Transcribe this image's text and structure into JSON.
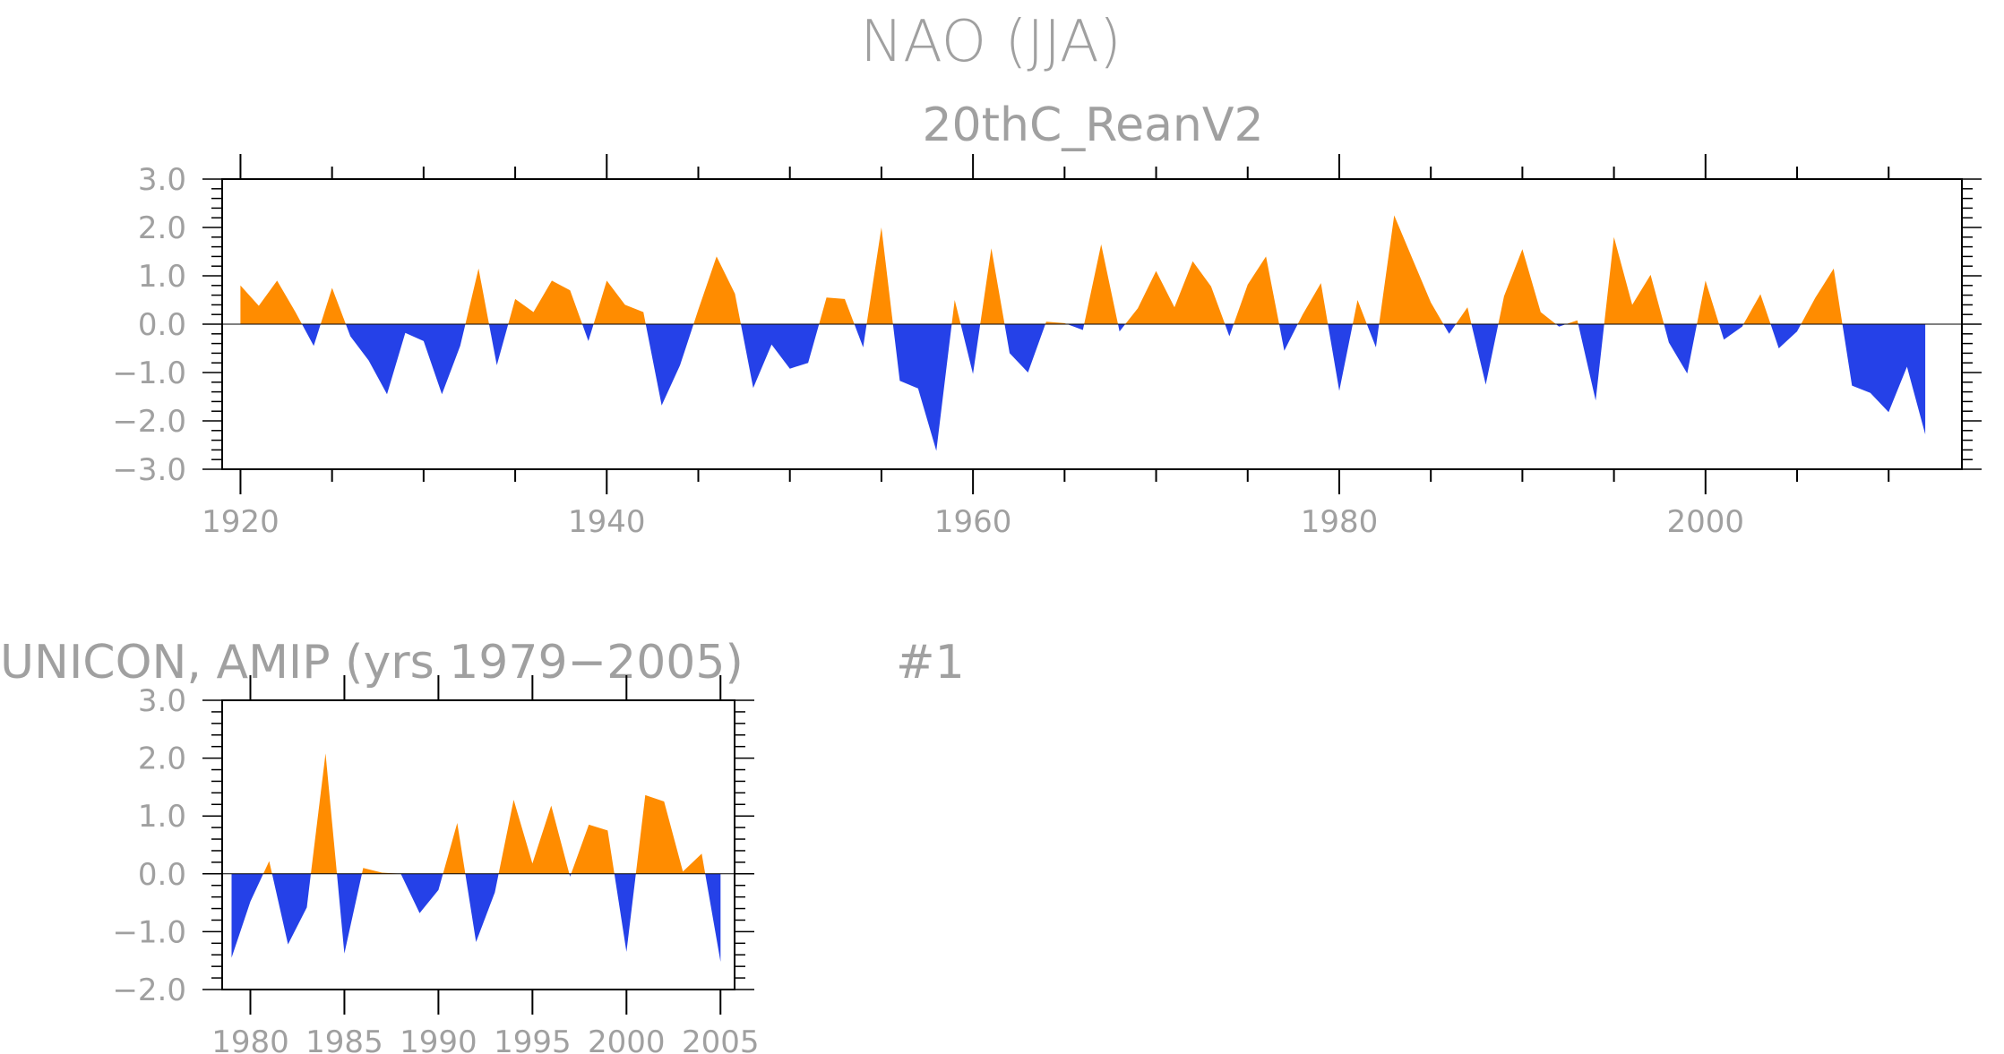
{
  "colors": {
    "positive": "#ff8c00",
    "negative": "#2541e8",
    "frame": "#000000",
    "text": "#a0a0a0"
  },
  "chart_data": [
    {
      "type": "area",
      "title": "NAO (JJA)",
      "subtitle": "20thC_ReanV2",
      "x_start": 1920,
      "x_end": 2012,
      "xlim": [
        1919,
        2014
      ],
      "ylim": [
        -3.0,
        3.0
      ],
      "xticks": [
        1920,
        1940,
        1960,
        1980,
        2000
      ],
      "xtick_labels": [
        "1920",
        "1940",
        "1960",
        "1980",
        "2000"
      ],
      "yticks": [
        3.0,
        2.0,
        1.0,
        0.0,
        -1.0,
        -2.0,
        -3.0
      ],
      "ytick_labels": [
        "3.0",
        "2.0",
        "1.0",
        "0.0",
        "−1.0",
        "−2.0",
        "−3.0"
      ],
      "values": [
        0.8,
        0.38,
        0.9,
        0.25,
        -0.45,
        0.75,
        -0.25,
        -0.75,
        -1.45,
        -0.18,
        -0.35,
        -1.45,
        -0.45,
        1.15,
        -0.85,
        0.52,
        0.25,
        0.9,
        0.7,
        -0.35,
        0.9,
        0.4,
        0.25,
        -1.68,
        -0.85,
        0.3,
        1.4,
        0.63,
        -1.32,
        -0.42,
        -0.92,
        -0.8,
        0.55,
        0.52,
        -0.48,
        2.0,
        -1.17,
        -1.33,
        -2.62,
        0.5,
        -1.03,
        1.57,
        -0.6,
        -1.0,
        0.05,
        0.02,
        -0.12,
        1.65,
        -0.15,
        0.33,
        1.1,
        0.35,
        1.3,
        0.78,
        -0.25,
        0.82,
        1.4,
        -0.55,
        0.2,
        0.85,
        -1.38,
        0.5,
        -0.48,
        2.25,
        1.35,
        0.45,
        -0.2,
        0.35,
        -1.25,
        0.58,
        1.55,
        0.25,
        -0.05,
        0.08,
        -1.58,
        1.8,
        0.4,
        1.02,
        -0.38,
        -1.02,
        0.9,
        -0.32,
        -0.05,
        0.62,
        -0.5,
        -0.15,
        0.55,
        1.15,
        -1.27,
        -1.42,
        -1.82,
        -0.88,
        -2.28
      ]
    },
    {
      "type": "area",
      "title": "UNICON, AMIP (yrs 1979−2005)",
      "annotation": "#1",
      "x_start": 1979,
      "x_end": 2005,
      "xlim": [
        1978.5,
        2005.75
      ],
      "ylim": [
        -2.0,
        3.0
      ],
      "xticks": [
        1980,
        1985,
        1990,
        1995,
        2000,
        2005
      ],
      "xtick_labels": [
        "1980",
        "1985",
        "1990",
        "1995",
        "2000",
        "2005"
      ],
      "yticks": [
        3.0,
        2.0,
        1.0,
        0.0,
        -1.0,
        -2.0
      ],
      "ytick_labels": [
        "3.0",
        "2.0",
        "1.0",
        "0.0",
        "−1.0",
        "−2.0"
      ],
      "values": [
        -1.45,
        -0.48,
        0.22,
        -1.22,
        -0.58,
        2.08,
        -1.38,
        0.1,
        0.02,
        0.0,
        -0.68,
        -0.28,
        0.88,
        -1.18,
        -0.32,
        1.28,
        0.18,
        1.18,
        -0.05,
        0.85,
        0.75,
        -1.35,
        1.36,
        1.25,
        0.04,
        0.35,
        -1.52
      ]
    }
  ]
}
